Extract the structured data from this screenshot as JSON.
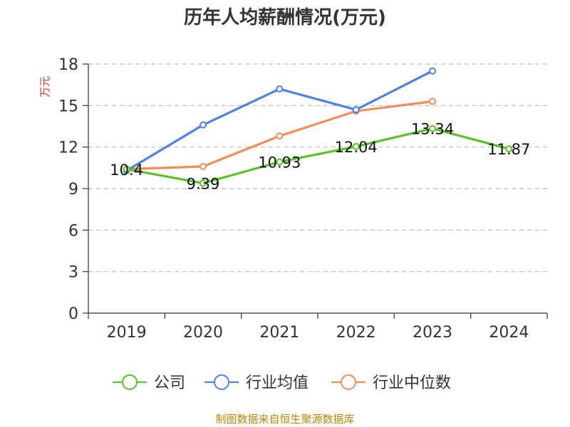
{
  "chart_data": {
    "type": "line",
    "title": "历年人均薪酬情况(万元)",
    "ylabel": "万元",
    "xlabel": "",
    "categories": [
      "2019",
      "2020",
      "2021",
      "2022",
      "2023",
      "2024"
    ],
    "ylim": [
      0,
      18
    ],
    "yticks": [
      0,
      3,
      6,
      9,
      12,
      15,
      18
    ],
    "grid": true,
    "legend_position": "bottom",
    "series": [
      {
        "name": "公司",
        "color": "#5ac12a",
        "values": [
          10.4,
          9.39,
          10.93,
          12.04,
          13.34,
          11.87
        ],
        "show_labels": true
      },
      {
        "name": "行业均值",
        "color": "#4f82dc",
        "values": [
          10.3,
          13.6,
          16.2,
          14.7,
          17.5,
          null
        ],
        "show_labels": false
      },
      {
        "name": "行业中位数",
        "color": "#f28d5b",
        "values": [
          10.4,
          10.6,
          12.8,
          14.6,
          15.3,
          null
        ],
        "show_labels": false
      }
    ],
    "data_labels": [
      "10.4",
      "9.39",
      "10.93",
      "12.04",
      "13.34",
      "11.87"
    ]
  },
  "source": "制图数据来自恒生聚源数据库"
}
